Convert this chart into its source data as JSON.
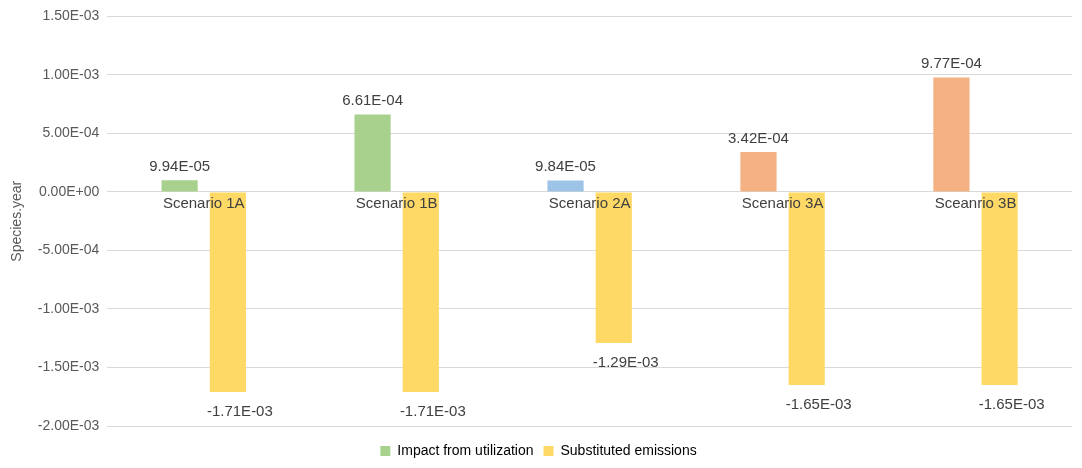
{
  "chart_data": {
    "type": "bar",
    "ylabel": "Species.year",
    "categories": [
      "Scenario 1A",
      "Scenario 1B",
      "Scenario 2A",
      "Scenario 3A",
      "Sceanrio 3B"
    ],
    "series": [
      {
        "name": "Impact from utilization",
        "color": "#a9d18e",
        "colors": [
          "#a9d18e",
          "#a9d18e",
          "#9dc3e6",
          "#f4b183",
          "#f4b183"
        ],
        "values": [
          9.94e-05,
          0.000661,
          9.84e-05,
          0.000342,
          0.000977
        ],
        "value_labels": [
          "9.94E-05",
          "6.61E-04",
          "9.84E-05",
          "3.42E-04",
          "9.77E-04"
        ]
      },
      {
        "name": "Substituted emissions",
        "color": "#ffd966",
        "values": [
          -0.00171,
          -0.00171,
          -0.00129,
          -0.00165,
          -0.00165
        ],
        "value_labels": [
          "-1.71E-03",
          "-1.71E-03",
          "-1.29E-03",
          "-1.65E-03",
          "-1.65E-03"
        ]
      }
    ],
    "ylim": [
      -0.002,
      0.0015
    ],
    "yticks": [
      {
        "value": -0.002,
        "label": "-2.00E-03"
      },
      {
        "value": -0.0015,
        "label": "-1.50E-03"
      },
      {
        "value": -0.001,
        "label": "-1.00E-03"
      },
      {
        "value": -0.0005,
        "label": "-5.00E-04"
      },
      {
        "value": 0,
        "label": "0.00E+00"
      },
      {
        "value": 0.0005,
        "label": "5.00E-04"
      },
      {
        "value": 0.001,
        "label": "1.00E-03"
      },
      {
        "value": 0.0015,
        "label": "1.50E-03"
      }
    ],
    "grid": "y",
    "legend": "bottom"
  }
}
